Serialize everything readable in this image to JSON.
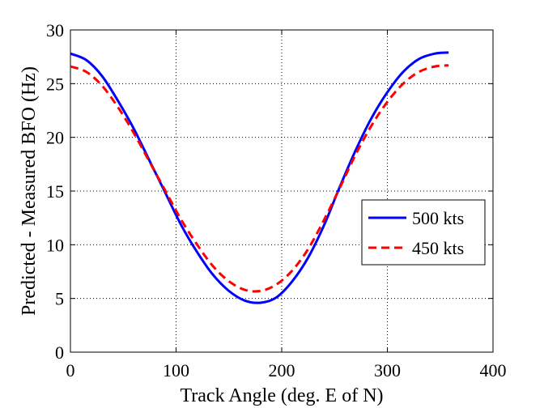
{
  "chart_data": {
    "type": "line",
    "title": "",
    "xlabel": "Track Angle (deg. E of N)",
    "ylabel": "Predicted - Measured BFO (Hz)",
    "xlim": [
      0,
      400
    ],
    "ylim": [
      0,
      30
    ],
    "xticks": [
      "0",
      "100",
      "200",
      "300",
      "400"
    ],
    "yticks": [
      "0",
      "5",
      "10",
      "15",
      "20",
      "25",
      "30"
    ],
    "grid": true,
    "legend_position": "right-center",
    "series": [
      {
        "name": "500 kts",
        "color": "#0000ff",
        "style": "solid",
        "x": [
          0,
          15,
          30,
          45,
          60,
          75,
          90,
          105,
          120,
          135,
          150,
          165,
          180,
          195,
          210,
          225,
          240,
          255,
          270,
          285,
          300,
          315,
          330,
          345,
          358
        ],
        "y": [
          27.8,
          27.2,
          25.7,
          23.4,
          20.8,
          17.8,
          14.8,
          11.8,
          9.3,
          7.2,
          5.7,
          4.8,
          4.6,
          5.1,
          6.6,
          8.8,
          11.8,
          15.4,
          18.8,
          21.8,
          24.2,
          26.1,
          27.3,
          27.8,
          27.9
        ]
      },
      {
        "name": "450 kts",
        "color": "#ff0000",
        "style": "dashed",
        "x": [
          0,
          15,
          30,
          45,
          60,
          75,
          90,
          105,
          120,
          135,
          150,
          165,
          180,
          195,
          210,
          225,
          240,
          255,
          270,
          285,
          300,
          315,
          330,
          345,
          358
        ],
        "y": [
          26.6,
          26.1,
          24.8,
          22.8,
          20.4,
          17.7,
          15.0,
          12.3,
          10.0,
          8.0,
          6.6,
          5.8,
          5.7,
          6.3,
          7.6,
          9.6,
          12.3,
          15.3,
          18.4,
          21.1,
          23.3,
          25.0,
          26.1,
          26.6,
          26.7
        ]
      }
    ]
  }
}
